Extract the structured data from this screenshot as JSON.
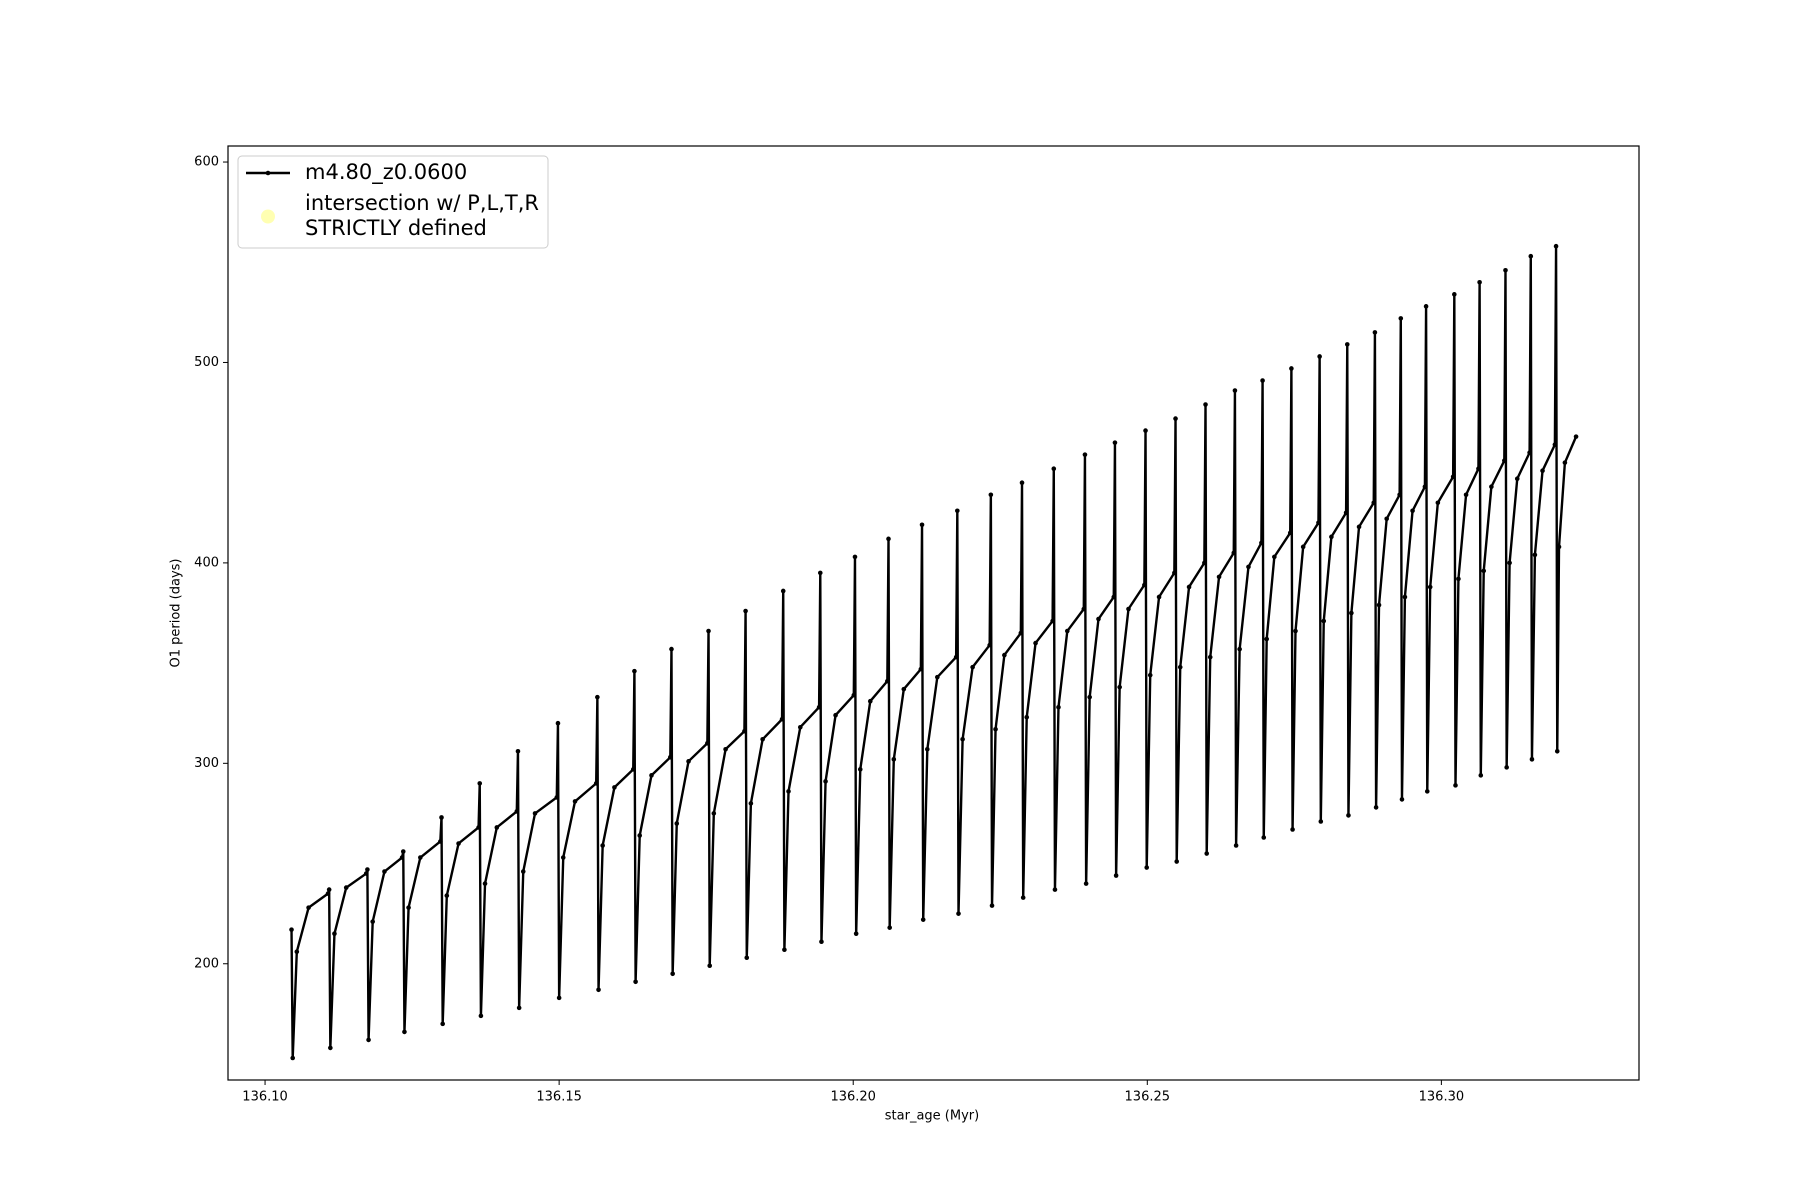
{
  "chart_data": {
    "type": "line",
    "xlabel": "star_age (Myr)",
    "ylabel": "O1 period (days)",
    "xlim": [
      136.0937,
      136.3336
    ],
    "ylim": [
      142,
      608
    ],
    "xticks": [
      {
        "value": 136.1,
        "label": "136.10"
      },
      136.15,
      {
        "value": 136.2,
        "label": "136.20"
      },
      136.25,
      {
        "value": 136.3,
        "label": "136.30"
      }
    ],
    "yticks": [
      200,
      300,
      400,
      500,
      600
    ],
    "legend": "upper left",
    "series": [
      {
        "name": "m4.80_z0.0600",
        "color": "#000000",
        "x": [
          136.1045,
          136.1047,
          136.1054,
          136.1074,
          136.1107,
          136.1109,
          136.1111,
          136.1118,
          136.1138,
          136.1172,
          136.1174,
          136.1176,
          136.1183,
          136.1203,
          136.1233,
          136.1235,
          136.1237,
          136.1244,
          136.1264,
          136.1298,
          136.13,
          136.1302,
          136.1309,
          136.1329,
          136.1363,
          136.1365,
          136.1367,
          136.1374,
          136.1394,
          136.1428,
          136.143,
          136.1432,
          136.1439,
          136.1459,
          136.1496,
          136.1498,
          136.15,
          136.1507,
          136.1527,
          136.1563,
          136.1565,
          136.1567,
          136.1574,
          136.1594,
          136.1626,
          136.1628,
          136.163,
          136.1637,
          136.1657,
          136.1689,
          136.1691,
          136.1693,
          136.17,
          136.172,
          136.1752,
          136.1754,
          136.1756,
          136.1763,
          136.1783,
          136.1815,
          136.1817,
          136.1819,
          136.1826,
          136.1846,
          136.1879,
          136.1881,
          136.1883,
          136.189,
          136.191,
          136.1942,
          136.1944,
          136.1946,
          136.1953,
          136.197,
          136.2001,
          136.2003,
          136.2005,
          136.2012,
          136.2029,
          136.2058,
          136.206,
          136.2062,
          136.2069,
          136.2086,
          136.2115,
          136.2117,
          136.2119,
          136.2126,
          136.2143,
          136.2175,
          136.2177,
          136.2179,
          136.2186,
          136.2203,
          136.2232,
          136.2234,
          136.2236,
          136.2242,
          136.2257,
          136.2285,
          136.2287,
          136.2289,
          136.2295,
          136.231,
          136.2339,
          136.2341,
          136.2343,
          136.2349,
          136.2364,
          136.2392,
          136.2394,
          136.2396,
          136.2402,
          136.2417,
          136.2443,
          136.2445,
          136.2447,
          136.2453,
          136.2468,
          136.2495,
          136.2497,
          136.2499,
          136.2505,
          136.252,
          136.2546,
          136.2548,
          136.255,
          136.2556,
          136.2571,
          136.2597,
          136.2599,
          136.2601,
          136.2607,
          136.2622,
          136.2647,
          136.2649,
          136.2651,
          136.2657,
          136.2672,
          136.2694,
          136.2696,
          136.2698,
          136.2703,
          136.2716,
          136.2743,
          136.2745,
          136.2747,
          136.2752,
          136.2765,
          136.2791,
          136.2793,
          136.2795,
          136.28,
          136.2813,
          136.2838,
          136.284,
          136.2842,
          136.2847,
          136.286,
          136.2885,
          136.2887,
          136.2889,
          136.2894,
          136.2907,
          136.2929,
          136.2931,
          136.2933,
          136.2938,
          136.2951,
          136.2972,
          136.2974,
          136.2976,
          136.2981,
          136.2994,
          136.302,
          136.3022,
          136.3024,
          136.3029,
          136.3042,
          136.3063,
          136.3065,
          136.3067,
          136.3072,
          136.3085,
          136.3107,
          136.3109,
          136.3111,
          136.3116,
          136.3129,
          136.315,
          136.3152,
          136.3154,
          136.3159,
          136.3172,
          136.3193,
          136.3195,
          136.3197,
          136.32,
          136.321,
          136.3229
        ],
        "values": [
          217,
          153,
          206,
          228,
          235,
          237,
          158,
          215,
          238,
          245,
          247,
          162,
          221,
          246,
          253,
          256,
          166,
          228,
          253,
          261,
          273,
          170,
          234,
          260,
          268,
          290,
          174,
          240,
          268,
          276,
          306,
          178,
          246,
          275,
          283,
          320,
          183,
          253,
          281,
          290,
          333,
          187,
          259,
          288,
          297,
          346,
          191,
          264,
          294,
          303,
          357,
          195,
          270,
          301,
          310,
          366,
          199,
          275,
          307,
          316,
          376,
          203,
          280,
          312,
          322,
          386,
          207,
          286,
          318,
          328,
          395,
          211,
          291,
          324,
          334,
          403,
          215,
          297,
          331,
          341,
          412,
          218,
          302,
          337,
          347,
          419,
          222,
          307,
          343,
          353,
          426,
          225,
          312,
          348,
          359,
          434,
          229,
          317,
          354,
          365,
          440,
          233,
          323,
          360,
          371,
          447,
          237,
          328,
          366,
          377,
          454,
          240,
          333,
          372,
          383,
          460,
          244,
          338,
          377,
          389,
          466,
          248,
          344,
          383,
          395,
          472,
          251,
          348,
          388,
          400,
          479,
          255,
          353,
          393,
          405,
          486,
          259,
          357,
          398,
          410,
          491,
          263,
          362,
          403,
          415,
          497,
          267,
          366,
          408,
          420,
          503,
          271,
          371,
          413,
          425,
          509,
          274,
          375,
          418,
          430,
          515,
          278,
          379,
          422,
          434,
          522,
          282,
          383,
          426,
          438,
          528,
          286,
          388,
          430,
          443,
          534,
          289,
          392,
          434,
          447,
          540,
          294,
          396,
          438,
          451,
          546,
          298,
          400,
          442,
          455,
          553,
          302,
          404,
          446,
          459,
          558,
          306,
          408,
          450,
          463
        ]
      },
      {
        "name": "intersection w/ P,L,T,R\nSTRICTLY defined",
        "color": "#ffffb2",
        "type": "scatter",
        "x": [],
        "values": []
      }
    ]
  }
}
